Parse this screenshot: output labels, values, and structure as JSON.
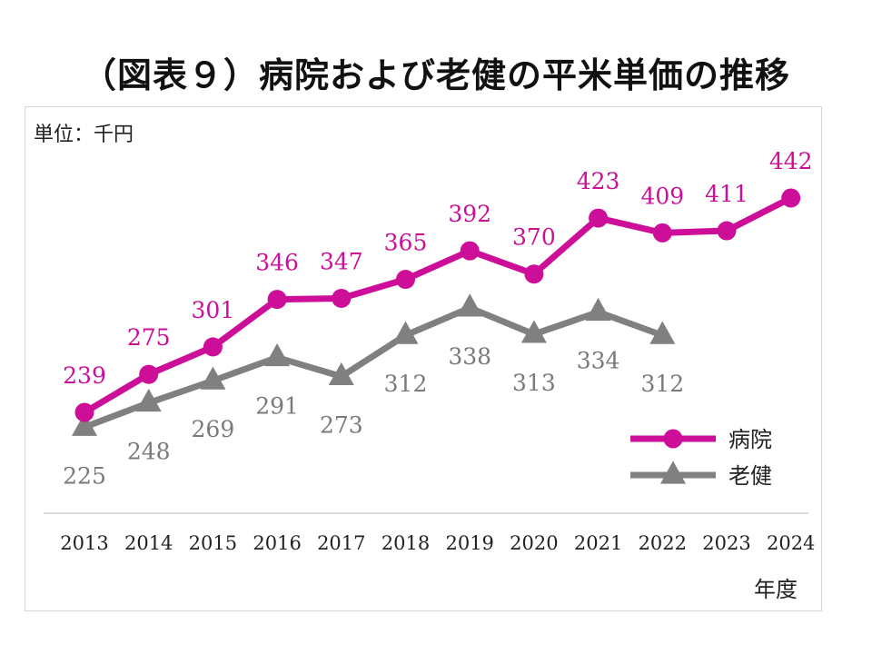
{
  "title": "（図表９）病院および老健の平米単価の推移",
  "unit_label": "単位：千円",
  "chart_data": {
    "type": "line",
    "title": "（図表９）病院および老健の平米単価の推移",
    "xlabel": "年度",
    "ylabel": "",
    "unit": "千円",
    "categories": [
      "2013",
      "2014",
      "2015",
      "2016",
      "2017",
      "2018",
      "2019",
      "2020",
      "2021",
      "2022",
      "2023",
      "2024"
    ],
    "series": [
      {
        "name": "病院",
        "color": "#cc0e99",
        "marker": "circle",
        "values": [
          239,
          275,
          301,
          346,
          347,
          365,
          392,
          370,
          423,
          409,
          411,
          442
        ]
      },
      {
        "name": "老健",
        "color": "#808080",
        "marker": "triangle",
        "values": [
          225,
          248,
          269,
          291,
          273,
          312,
          338,
          313,
          334,
          312,
          null,
          null
        ]
      }
    ],
    "ylim": [
      200,
      460
    ],
    "grid": false,
    "legend": "bottom-right"
  }
}
